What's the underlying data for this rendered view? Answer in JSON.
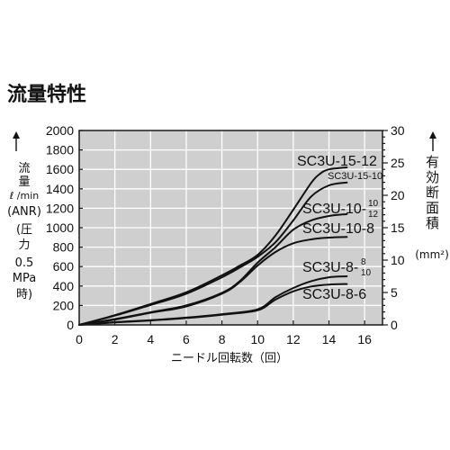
{
  "chart_data": {
    "type": "line",
    "title": "流量特性",
    "xlabel": "ニードル回転数（回）",
    "ylabel_lines": [
      "流",
      "量",
      "ℓ /min",
      "(ANR)",
      "(圧",
      "力",
      "0.5",
      "MPa",
      "時)"
    ],
    "y2label": "有効断面積",
    "y2unit": "(mm²)",
    "xlim": [
      0,
      17
    ],
    "ylim": [
      0,
      2000
    ],
    "y2lim": [
      0,
      30
    ],
    "xticks": [
      0,
      2,
      4,
      6,
      8,
      10,
      12,
      14,
      16
    ],
    "yticks": [
      0,
      200,
      400,
      600,
      800,
      1000,
      1200,
      1400,
      1600,
      1800,
      2000
    ],
    "y2ticks": [
      0,
      5,
      10,
      15,
      20,
      25,
      30
    ],
    "grid": true,
    "series": [
      {
        "name": "SC3U-15-12",
        "x": [
          0,
          2,
          4,
          6,
          8,
          9,
          10,
          11,
          12,
          13,
          13.5,
          14,
          15
        ],
        "y": [
          0,
          100,
          215,
          335,
          510,
          610,
          720,
          920,
          1185,
          1460,
          1555,
          1600,
          1620
        ]
      },
      {
        "name": "SC3U-15-10",
        "x": [
          0,
          2,
          4,
          6,
          8,
          9,
          10,
          11,
          12,
          13,
          14,
          15
        ],
        "y": [
          0,
          95,
          205,
          320,
          490,
          590,
          700,
          850,
          1075,
          1320,
          1435,
          1465
        ]
      },
      {
        "name": "SC3U-10-",
        "name_upper": "10",
        "name_lower": "12",
        "x": [
          0,
          2,
          4,
          6,
          8,
          9,
          10,
          11,
          12,
          13,
          14,
          15
        ],
        "y": [
          0,
          60,
          130,
          200,
          330,
          450,
          640,
          800,
          980,
          1075,
          1120,
          1140
        ]
      },
      {
        "name": "SC3U-10-8",
        "x": [
          0,
          2,
          4,
          6,
          8,
          9,
          10,
          11,
          12,
          13,
          14,
          15
        ],
        "y": [
          0,
          55,
          125,
          190,
          320,
          440,
          610,
          750,
          840,
          880,
          898,
          905
        ]
      },
      {
        "name": "SC3U-8-",
        "name_upper": "8",
        "name_lower": "10",
        "x": [
          0,
          2,
          4,
          6,
          8,
          10,
          11,
          12,
          13,
          14,
          15
        ],
        "y": [
          0,
          28,
          48,
          75,
          110,
          160,
          285,
          380,
          450,
          490,
          500
        ]
      },
      {
        "name": "SC3U-8-6",
        "x": [
          0,
          2,
          4,
          6,
          8,
          10,
          11,
          12,
          13,
          14,
          15
        ],
        "y": [
          0,
          25,
          45,
          70,
          105,
          150,
          260,
          345,
          395,
          415,
          420
        ]
      }
    ]
  }
}
